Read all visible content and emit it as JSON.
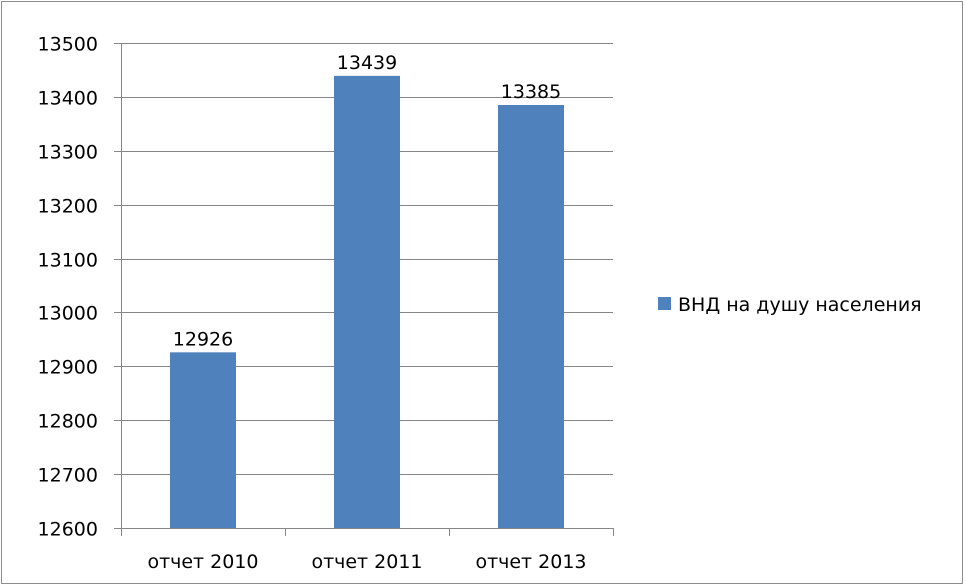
{
  "chart_data": {
    "type": "bar",
    "title": "",
    "xlabel": "",
    "ylabel": "",
    "categories": [
      "отчет 2010",
      "отчет 2011",
      "отчет 2013"
    ],
    "series": [
      {
        "name": "ВНД на душу населения",
        "values": [
          12926,
          13439,
          13385
        ],
        "color": "#4f81bd"
      }
    ],
    "data_labels": [
      "12926",
      "13439",
      "13385"
    ],
    "ylim": [
      12600,
      13500
    ],
    "yticks": [
      "12600",
      "12700",
      "12800",
      "12900",
      "13000",
      "13100",
      "13200",
      "13300",
      "13400",
      "13500"
    ],
    "grid": true,
    "legend_position": "right"
  }
}
